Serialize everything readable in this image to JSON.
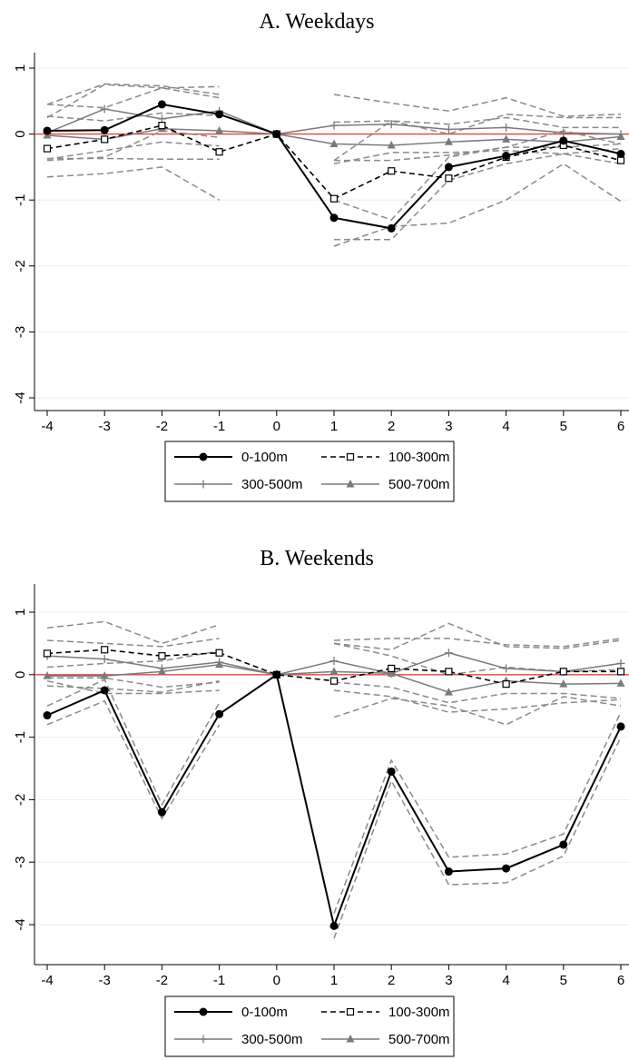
{
  "colors": {
    "zero_line": "#e8443a",
    "ci_band": "#8a8a8a",
    "series_0_100": "#000000",
    "series_100_300": "#000000",
    "series_300_500": "#7a7a7a",
    "series_500_700": "#7a7a7a",
    "grid": "#eeeeee"
  },
  "legend": {
    "items": [
      {
        "label": "0-100m",
        "style": "solid-circle"
      },
      {
        "label": "100-300m",
        "style": "dashed-square"
      },
      {
        "label": "300-500m",
        "style": "gray-plus"
      },
      {
        "label": "500-700m",
        "style": "gray-triangle"
      }
    ]
  },
  "chart_data": [
    {
      "type": "line",
      "title": "A. Weekdays",
      "x": [
        -4,
        -3,
        -2,
        -1,
        0,
        1,
        2,
        3,
        4,
        5,
        6
      ],
      "x_ticks": [
        "-4",
        "-3",
        "-2",
        "-1",
        "0",
        "1",
        "2",
        "3",
        "4",
        "5",
        "6"
      ],
      "y_ticks": [
        "1",
        "0",
        "-1",
        "-2",
        "-3",
        "-4"
      ],
      "xlim": [
        -4,
        6
      ],
      "ylim": [
        -4.2,
        1.2
      ],
      "grid": true,
      "legend_position": "bottom",
      "reference_line_y": 0,
      "series": [
        {
          "name": "0-100m",
          "values": [
            0.05,
            0.06,
            0.45,
            0.3,
            0.0,
            -1.27,
            -1.43,
            -0.5,
            -0.33,
            -0.1,
            -0.3
          ],
          "ci_lower": [
            -0.4,
            -0.35,
            0.05,
            -0.05,
            0.0,
            -1.6,
            -1.6,
            -0.7,
            -0.45,
            -0.3,
            -0.45
          ],
          "ci_upper": [
            0.45,
            0.4,
            0.7,
            0.55,
            0.0,
            -1.0,
            -1.3,
            -0.35,
            -0.2,
            0.05,
            -0.15
          ]
        },
        {
          "name": "100-300m",
          "values": [
            -0.22,
            -0.08,
            0.13,
            -0.27,
            0.0,
            -0.98,
            -0.56,
            -0.67,
            -0.35,
            -0.17,
            -0.4
          ],
          "ci_lower": [
            -0.65,
            -0.6,
            -0.5,
            -1.0,
            0.0,
            -1.7,
            -1.4,
            -1.35,
            -1.0,
            -0.45,
            -1.02
          ],
          "ci_upper": [
            0.25,
            0.75,
            0.7,
            0.72,
            0.0,
            -0.4,
            0.2,
            0.0,
            0.3,
            0.25,
            0.25
          ]
        },
        {
          "name": "300-500m",
          "values": [
            0.02,
            0.38,
            0.23,
            0.35,
            0.0,
            0.13,
            0.15,
            0.07,
            0.1,
            0.02,
            0.0
          ],
          "ci_lower": [
            -0.37,
            -0.37,
            -0.38,
            -0.38,
            0.0,
            -0.4,
            -0.4,
            -0.32,
            -0.2,
            -0.2,
            -0.15
          ],
          "ci_upper": [
            0.45,
            0.76,
            0.73,
            0.6,
            0.0,
            0.6,
            0.47,
            0.35,
            0.55,
            0.27,
            0.3
          ]
        },
        {
          "name": "500-700m",
          "values": [
            -0.02,
            -0.08,
            0.08,
            0.05,
            0.0,
            -0.15,
            -0.17,
            -0.12,
            -0.08,
            -0.12,
            -0.04
          ],
          "ci_lower": [
            -0.38,
            -0.25,
            -0.12,
            -0.18,
            0.0,
            -0.45,
            -0.28,
            -0.28,
            -0.25,
            -0.3,
            -0.22
          ],
          "ci_upper": [
            0.27,
            0.2,
            0.32,
            0.28,
            0.0,
            0.18,
            0.2,
            0.15,
            0.25,
            0.1,
            0.1
          ]
        }
      ]
    },
    {
      "type": "line",
      "title": "B. Weekends",
      "x": [
        -4,
        -3,
        -2,
        -1,
        0,
        1,
        2,
        3,
        4,
        5,
        6
      ],
      "x_ticks": [
        "-4",
        "-3",
        "-2",
        "-1",
        "0",
        "1",
        "2",
        "3",
        "4",
        "5",
        "6"
      ],
      "y_ticks": [
        "1",
        "0",
        "-1",
        "-2",
        "-3",
        "-4"
      ],
      "xlim": [
        -4,
        6
      ],
      "ylim": [
        -4.3,
        1.2
      ],
      "grid": true,
      "legend_position": "bottom",
      "reference_line_y": 0,
      "series": [
        {
          "name": "0-100m",
          "values": [
            -0.65,
            -0.25,
            -2.2,
            -0.63,
            0.0,
            -4.02,
            -1.55,
            -3.15,
            -3.1,
            -2.72,
            -0.83
          ],
          "ci_lower": [
            -0.8,
            -0.42,
            -2.3,
            -0.8,
            0.0,
            -4.22,
            -1.7,
            -3.36,
            -3.33,
            -2.9,
            -1.0
          ],
          "ci_upper": [
            -0.5,
            -0.08,
            -2.08,
            -0.45,
            0.0,
            -3.82,
            -1.37,
            -2.92,
            -2.87,
            -2.55,
            -0.6
          ]
        },
        {
          "name": "100-300m",
          "values": [
            0.34,
            0.4,
            0.3,
            0.35,
            0.0,
            -0.1,
            0.1,
            0.05,
            -0.15,
            0.05,
            0.05
          ],
          "ci_lower": [
            -0.05,
            -0.05,
            -0.2,
            -0.12,
            0.0,
            -0.68,
            -0.38,
            -0.5,
            -0.8,
            -0.35,
            -0.5
          ],
          "ci_upper": [
            0.75,
            0.85,
            0.5,
            0.8,
            0.0,
            0.55,
            0.58,
            0.58,
            0.48,
            0.45,
            0.58
          ]
        },
        {
          "name": "300-500m",
          "values": [
            0.3,
            0.25,
            0.1,
            0.2,
            0.0,
            0.22,
            0.02,
            0.35,
            0.1,
            0.05,
            0.18
          ],
          "ci_lower": [
            -0.1,
            -0.3,
            -0.3,
            -0.25,
            0.0,
            -0.25,
            -0.35,
            -0.6,
            -0.55,
            -0.45,
            -0.4
          ],
          "ci_upper": [
            0.55,
            0.5,
            0.45,
            0.58,
            0.0,
            0.5,
            0.4,
            0.82,
            0.45,
            0.42,
            0.55
          ]
        },
        {
          "name": "500-700m",
          "values": [
            -0.02,
            -0.02,
            0.05,
            0.16,
            0.0,
            0.05,
            0.02,
            -0.28,
            -0.1,
            -0.15,
            -0.14
          ],
          "ci_lower": [
            -0.18,
            -0.22,
            -0.28,
            -0.1,
            0.0,
            -0.12,
            -0.2,
            -0.45,
            -0.3,
            -0.3,
            -0.38
          ],
          "ci_upper": [
            0.12,
            0.18,
            0.22,
            0.38,
            0.0,
            0.5,
            0.3,
            0.0,
            0.12,
            0.05,
            0.08
          ]
        }
      ]
    }
  ]
}
